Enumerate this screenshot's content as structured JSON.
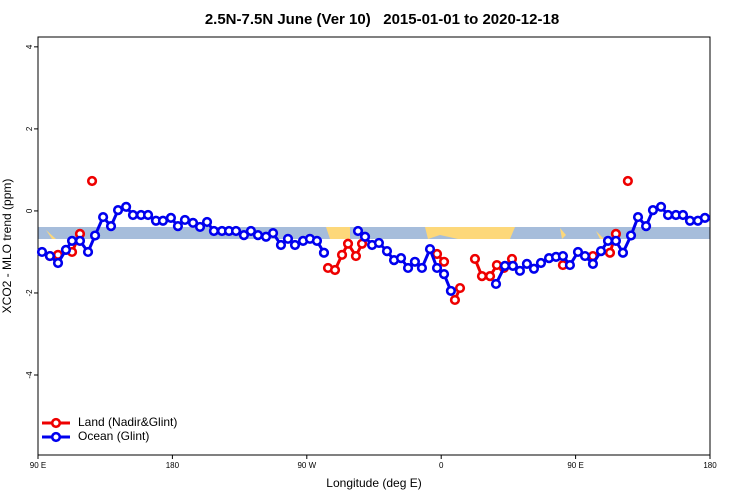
{
  "chart_data": {
    "type": "line",
    "title": "2.5N-7.5N June (Ver 10)   2015-01-01 to 2020-12-18",
    "x_label": "Longitude (deg E)",
    "y_label": "XCO2 - MLO trend (ppm)",
    "xlim": [
      90,
      540
    ],
    "xticks": [
      {
        "value": 90,
        "label": "90 E"
      },
      {
        "value": 180,
        "label": "180"
      },
      {
        "value": 270,
        "label": "90 W"
      },
      {
        "value": 360,
        "label": "0"
      },
      {
        "value": 450,
        "label": "90 E"
      },
      {
        "value": 540,
        "label": "180"
      }
    ],
    "ylim": [
      -5.95,
      4.24
    ],
    "yticks": [
      -4,
      -2,
      0,
      2,
      4
    ],
    "legend": "bottom-left",
    "series": [
      {
        "name": "Land (Nadir&Glint)",
        "color": "#ee0000",
        "x": [
          98,
          103.4,
          null,
          112.8,
          118.1,
          null,
          126.2,
          null,
          284.2,
          288.9,
          293.6,
          297.6,
          302.9,
          307,
          null,
          357.2,
          361.9,
          null,
          369.2,
          372.6,
          null,
          382.6,
          387.3,
          392.7,
          397.3,
          402,
          407.4,
          null,
          441.5,
          null,
          461.6,
          null,
          473,
          477,
          null,
          485
        ],
        "values": [
          -1.1,
          -1.07,
          null,
          -1.0,
          -0.56,
          null,
          0.73,
          null,
          -1.39,
          -1.44,
          -1.07,
          -0.8,
          -1.1,
          -0.8,
          null,
          -1.05,
          -1.24,
          null,
          -2.17,
          -1.88,
          null,
          -1.17,
          -1.59,
          -1.59,
          -1.32,
          -1.39,
          -1.17,
          null,
          -1.32,
          null,
          -1.1,
          null,
          -1.02,
          -0.56,
          null,
          0.73
        ]
      },
      {
        "name": "Ocean (Glint)",
        "color": "#0000ee",
        "x": [
          92.7,
          98,
          103.4,
          108.7,
          112.8,
          118.1,
          123.5,
          128.2,
          133.6,
          138.9,
          143.6,
          149,
          153.6,
          159,
          163.7,
          169,
          173.7,
          179,
          183.7,
          188.4,
          193.8,
          198.5,
          203.2,
          207.8,
          213.2,
          217.9,
          222.6,
          227.9,
          232.6,
          237.3,
          242.7,
          247.4,
          252.7,
          257.4,
          262.1,
          267.5,
          272.1,
          276.8,
          281.5,
          null,
          304.3,
          309,
          313.7,
          318.3,
          323.7,
          328.4,
          333.1,
          337.8,
          342.4,
          347.1,
          352.5,
          357.2,
          361.9,
          366.5,
          null,
          396.7,
          402.7,
          408,
          412.7,
          417.4,
          422.1,
          426.8,
          432.2,
          436.9,
          441.5,
          446.2,
          451.6,
          456.3,
          461.6,
          467,
          471.7,
          477,
          481.7,
          487.1,
          491.8,
          497.2,
          501.8,
          507.2,
          511.9,
          517.2,
          521.9,
          526.6,
          531.9,
          536.6
        ],
        "values": [
          -1.0,
          -1.1,
          -1.27,
          -0.95,
          -0.73,
          -0.73,
          -1.0,
          -0.6,
          -0.15,
          -0.37,
          0.02,
          0.1,
          -0.1,
          -0.1,
          -0.1,
          -0.24,
          -0.24,
          -0.17,
          -0.37,
          -0.22,
          -0.29,
          -0.39,
          -0.27,
          -0.49,
          -0.49,
          -0.49,
          -0.49,
          -0.59,
          -0.49,
          -0.59,
          -0.63,
          -0.54,
          -0.83,
          -0.68,
          -0.83,
          -0.73,
          -0.68,
          -0.73,
          -1.02,
          null,
          -0.49,
          -0.63,
          -0.83,
          -0.78,
          -0.98,
          -1.2,
          -1.15,
          -1.39,
          -1.24,
          -1.39,
          -0.93,
          -1.39,
          -1.54,
          -1.95,
          null,
          -1.78,
          -1.34,
          -1.34,
          -1.46,
          -1.29,
          -1.41,
          -1.27,
          -1.15,
          -1.12,
          -1.1,
          -1.32,
          -1.0,
          -1.1,
          -1.29,
          -0.98,
          -0.73,
          -0.73,
          -1.02,
          -0.6,
          -0.15,
          -0.37,
          0.02,
          0.1,
          -0.1,
          -0.1,
          -0.1,
          -0.24,
          -0.24,
          -0.17
        ]
      }
    ]
  }
}
